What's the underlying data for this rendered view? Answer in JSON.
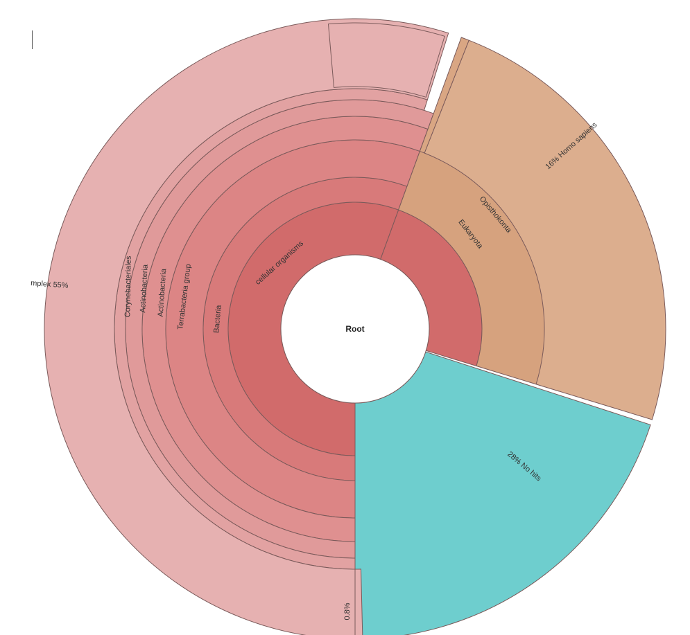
{
  "chart_data": {
    "type": "sunburst",
    "root_label": "Root",
    "nodes": [
      {
        "name": "cellular organisms",
        "value": 71,
        "parent": "Root",
        "color": "#d16b6b"
      },
      {
        "name": "No hits",
        "value": 28,
        "percent_label": "28%",
        "parent": "Root",
        "color": "#6ecece"
      },
      {
        "name": "Bacteria",
        "value": 55,
        "parent": "cellular organisms",
        "color": "#d87a7a"
      },
      {
        "name": "Eukaryota",
        "value": 16,
        "parent": "cellular organisms",
        "color": "#d6a27e"
      },
      {
        "name": "Terrabacteria group",
        "value": 55,
        "parent": "Bacteria",
        "color": "#dc8585"
      },
      {
        "name": "Actinobacteria",
        "value": 55,
        "parent": "Terrabacteria group",
        "color": "#df9090"
      },
      {
        "name": "Actinobacteria",
        "value": 55,
        "parent": "Actinobacteria",
        "color": "#e09a9a"
      },
      {
        "name": "Corynebacteriales",
        "value": 55,
        "parent": "Actinobacteria",
        "color": "#e2a2a2"
      },
      {
        "name": "mplex",
        "value": 55,
        "percent_label": "55%",
        "parent": "Corynebacteriales",
        "color": "#e6b1b1"
      },
      {
        "name": "Opisthokonta",
        "value": 16,
        "parent": "Eukaryota",
        "color": "#d9a683"
      },
      {
        "name": "Homo sapiens",
        "value": 16,
        "percent_label": "16%",
        "parent": "Opisthokonta",
        "color": "#dcae8e"
      }
    ],
    "annotations": [
      "0.8%"
    ]
  }
}
